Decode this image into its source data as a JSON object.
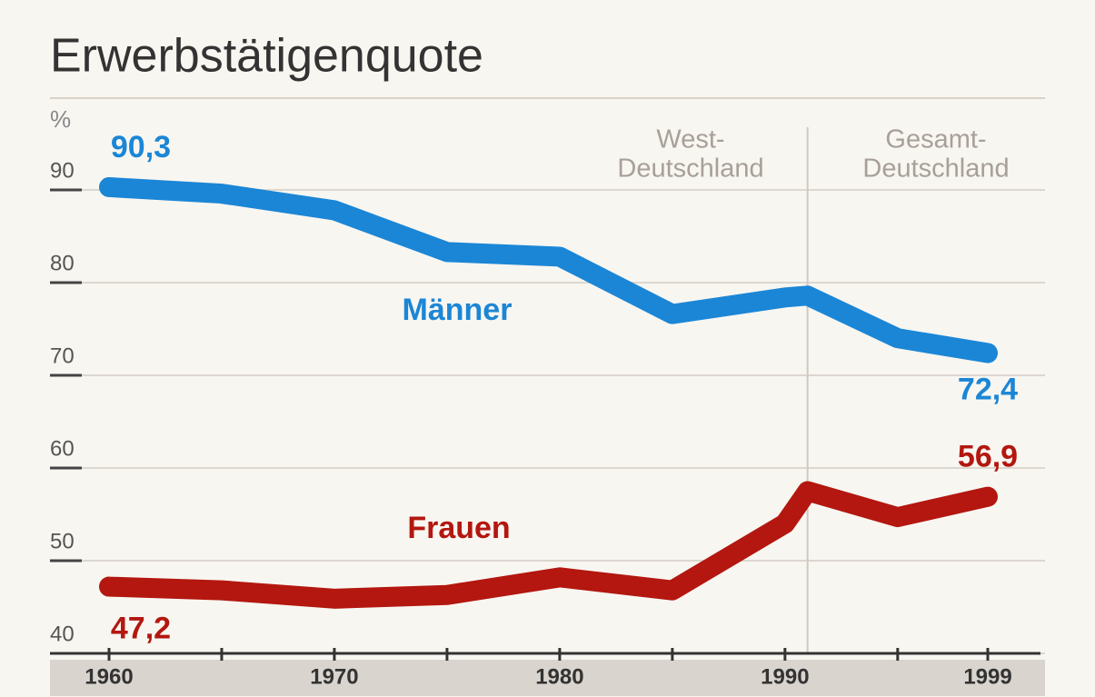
{
  "chart_data": {
    "type": "line",
    "title": "Erwerbstätigenquote",
    "y_label": "%",
    "x": [
      1960,
      1965,
      1970,
      1975,
      1980,
      1985,
      1990,
      1991,
      1995,
      1999
    ],
    "series": [
      {
        "name": "Männer",
        "color": "#1b86d6",
        "values": [
          90.3,
          89.6,
          87.8,
          83.3,
          82.8,
          76.6,
          78.4,
          78.6,
          74.0,
          72.4
        ],
        "value_labels": [
          "90,3",
          null,
          null,
          null,
          null,
          null,
          null,
          null,
          null,
          "72,4"
        ]
      },
      {
        "name": "Frauen",
        "color": "#b3170f",
        "values": [
          47.2,
          46.8,
          45.9,
          46.3,
          48.2,
          46.8,
          54.0,
          57.5,
          54.7,
          56.9
        ],
        "value_labels": [
          "47,2",
          null,
          null,
          null,
          null,
          null,
          null,
          null,
          null,
          "56,9"
        ]
      }
    ],
    "xlim": [
      1957.5,
      2001.5
    ],
    "ylim": [
      40,
      97
    ],
    "xticks": [
      1960,
      1970,
      1980,
      1990,
      1999
    ],
    "minor_xticks": [
      1965,
      1975,
      1985,
      1995
    ],
    "yticks": [
      40,
      50,
      60,
      70,
      80,
      90
    ],
    "grid": true,
    "divider_x": 1991,
    "annotations": [
      [
        "West-",
        "Deutschland"
      ],
      [
        "Gesamt-",
        "Deutschland"
      ]
    ]
  }
}
